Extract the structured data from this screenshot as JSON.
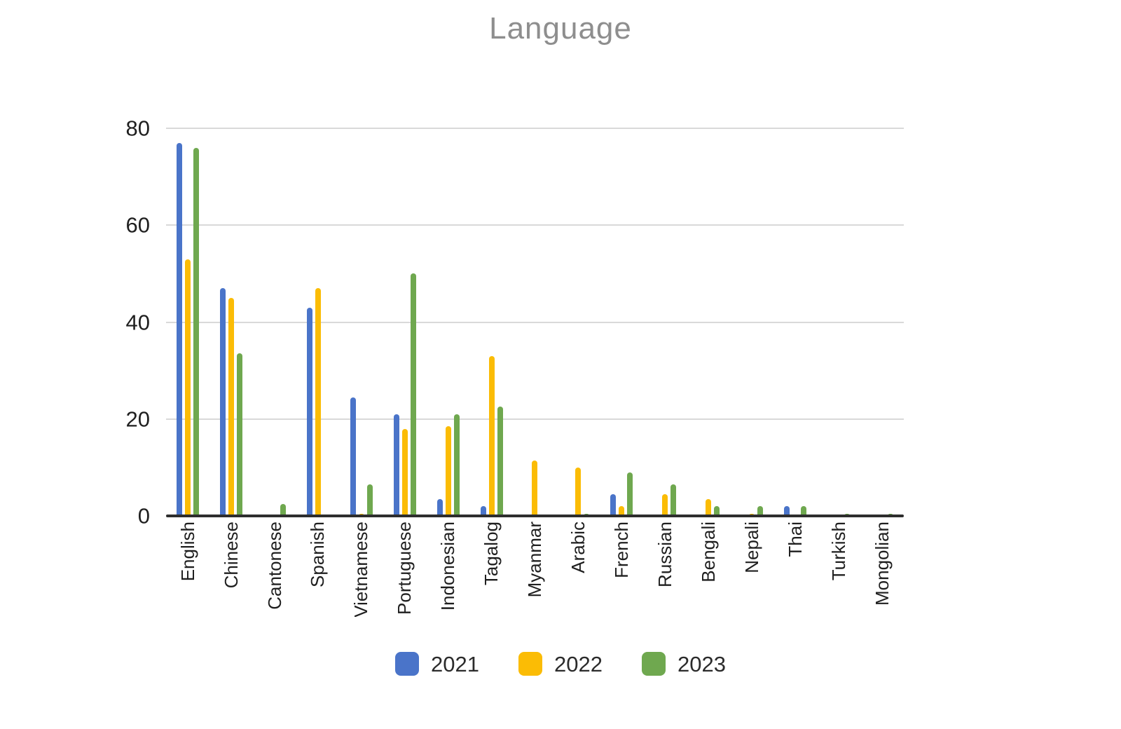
{
  "title": "Language",
  "colors": {
    "series_2021": "#4A74C9",
    "series_2022": "#FBBC05",
    "series_2023": "#6FA84F",
    "gridline": "#D9D9D9",
    "axis": "#2E2E2E",
    "title_text": "#8E8E8E",
    "tick_text": "#1F1F1F"
  },
  "chart_data": {
    "type": "bar",
    "title": "Language",
    "xlabel": "",
    "ylabel": "",
    "ylim": [
      0,
      80
    ],
    "yticks": [
      80,
      60,
      40,
      20,
      0
    ],
    "grid": true,
    "legend_position": "bottom",
    "categories": [
      "English",
      "Chinese",
      "Cantonese",
      "Spanish",
      "Vietnamese",
      "Portuguese",
      "Indonesian",
      "Tagalog",
      "Myanmar",
      "Arabic",
      "French",
      "Russian",
      "Bengali",
      "Nepali",
      "Thai",
      "Turkish",
      "Mongolian"
    ],
    "series": [
      {
        "name": "2021",
        "color": "#4A74C9",
        "values": [
          77,
          47,
          0,
          43,
          24.5,
          21,
          3.5,
          2,
          0,
          0,
          4.5,
          0,
          0,
          0,
          2,
          0,
          0
        ]
      },
      {
        "name": "2022",
        "color": "#FBBC05",
        "values": [
          53,
          45,
          0,
          47,
          0.5,
          18,
          18.5,
          33,
          11.5,
          10,
          2,
          4.5,
          3.5,
          0.5,
          0,
          0,
          0
        ]
      },
      {
        "name": "2023",
        "color": "#6FA84F",
        "values": [
          76,
          33.5,
          2.5,
          0,
          6.5,
          50,
          21,
          22.5,
          0,
          0.5,
          9,
          6.5,
          2,
          2,
          2,
          0.5,
          0.5
        ]
      }
    ]
  }
}
